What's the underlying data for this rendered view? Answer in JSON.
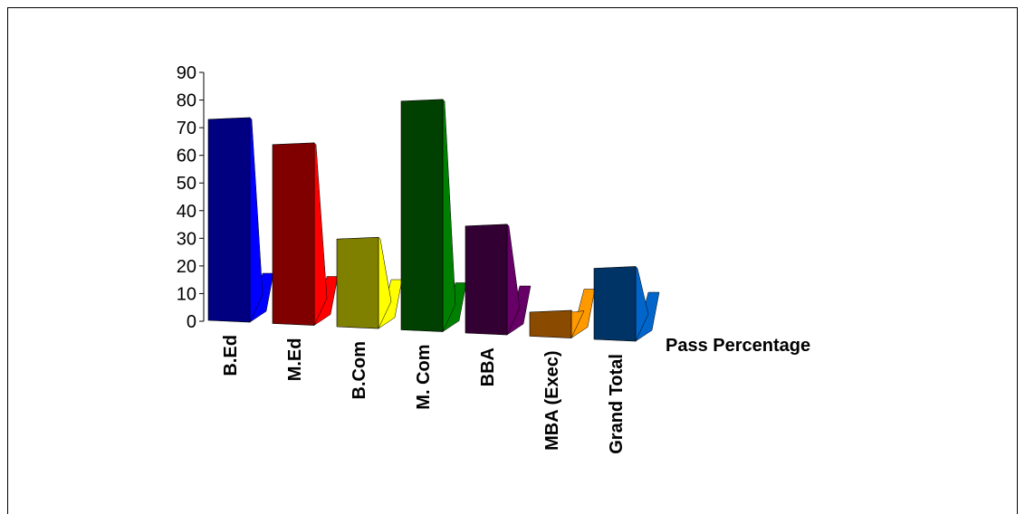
{
  "chart_data": {
    "type": "bar",
    "variant": "3d-column",
    "categories": [
      "B.Ed",
      "M.Ed",
      "B.Com",
      "M. Com",
      "BBA",
      "MBA (Exec)",
      "Grand Total"
    ],
    "series": [
      {
        "name": "Pass Percentage",
        "values": [
          74,
          66,
          33,
          84,
          40,
          10,
          27
        ]
      }
    ],
    "bar_colors": [
      "#000080",
      "#800000",
      "#808000",
      "#004000",
      "#330033",
      "#8a4a00",
      "#003366"
    ],
    "side_colors": [
      "#0000ff",
      "#ff0000",
      "#ffff00",
      "#008000",
      "#660066",
      "#ff9900",
      "#0066cc"
    ],
    "ylim": [
      0,
      90
    ],
    "yticks": [
      0,
      10,
      20,
      30,
      40,
      50,
      60,
      70,
      80,
      90
    ],
    "legend": "right",
    "grid": false
  }
}
